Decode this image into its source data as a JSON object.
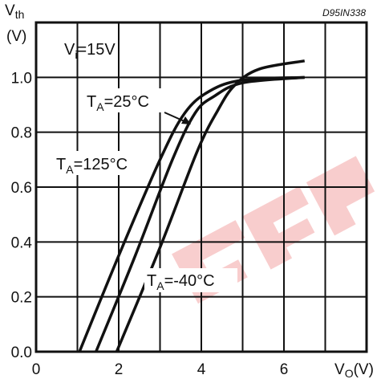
{
  "chart_data": {
    "type": "line",
    "reference_code": "D95IN338",
    "y_title": {
      "main": "V",
      "sub": "th",
      "unit": "(V)"
    },
    "x_title": {
      "main": "V",
      "sub": "O",
      "unit": "(V)"
    },
    "xlim": [
      0,
      8
    ],
    "ylim": [
      0,
      1.2
    ],
    "x_ticks": [
      "0",
      "2",
      "4",
      "6"
    ],
    "y_ticks": [
      "0.0",
      "0.2",
      "0.4",
      "0.6",
      "0.8",
      "1.0"
    ],
    "x_tick_values": [
      0,
      2,
      4,
      6
    ],
    "y_tick_values": [
      0.0,
      0.2,
      0.4,
      0.6,
      0.8,
      1.0
    ],
    "grid": true,
    "annotations": {
      "vi": {
        "main": "V",
        "sub": "i",
        "rest": "=15V"
      },
      "t25": {
        "main": "T",
        "sub": "A",
        "rest": "=25°C"
      },
      "t125": {
        "main": "T",
        "sub": "A",
        "rest": "=125°C"
      },
      "tm40": {
        "main": "T",
        "sub": "A",
        "rest": "=-40°C"
      }
    },
    "series": [
      {
        "label_ref": "t125",
        "x": [
          1.05,
          2.0,
          3.0,
          3.6,
          4.2,
          5.0,
          6.5
        ],
        "y": [
          0.0,
          0.35,
          0.7,
          0.87,
          0.95,
          0.99,
          1.0
        ]
      },
      {
        "label_ref": "t25",
        "x": [
          1.45,
          2.4,
          3.3,
          3.85,
          4.3,
          5.0,
          6.5
        ],
        "y": [
          0.0,
          0.35,
          0.7,
          0.87,
          0.93,
          0.98,
          1.0
        ]
      },
      {
        "label_ref": "tm40",
        "x": [
          1.95,
          3.0,
          3.9,
          4.4,
          4.8,
          5.4,
          6.5
        ],
        "y": [
          0.0,
          0.38,
          0.73,
          0.88,
          0.97,
          1.03,
          1.06
        ]
      }
    ],
    "watermark_text": "GEP",
    "watermark_color": "#e02020"
  }
}
